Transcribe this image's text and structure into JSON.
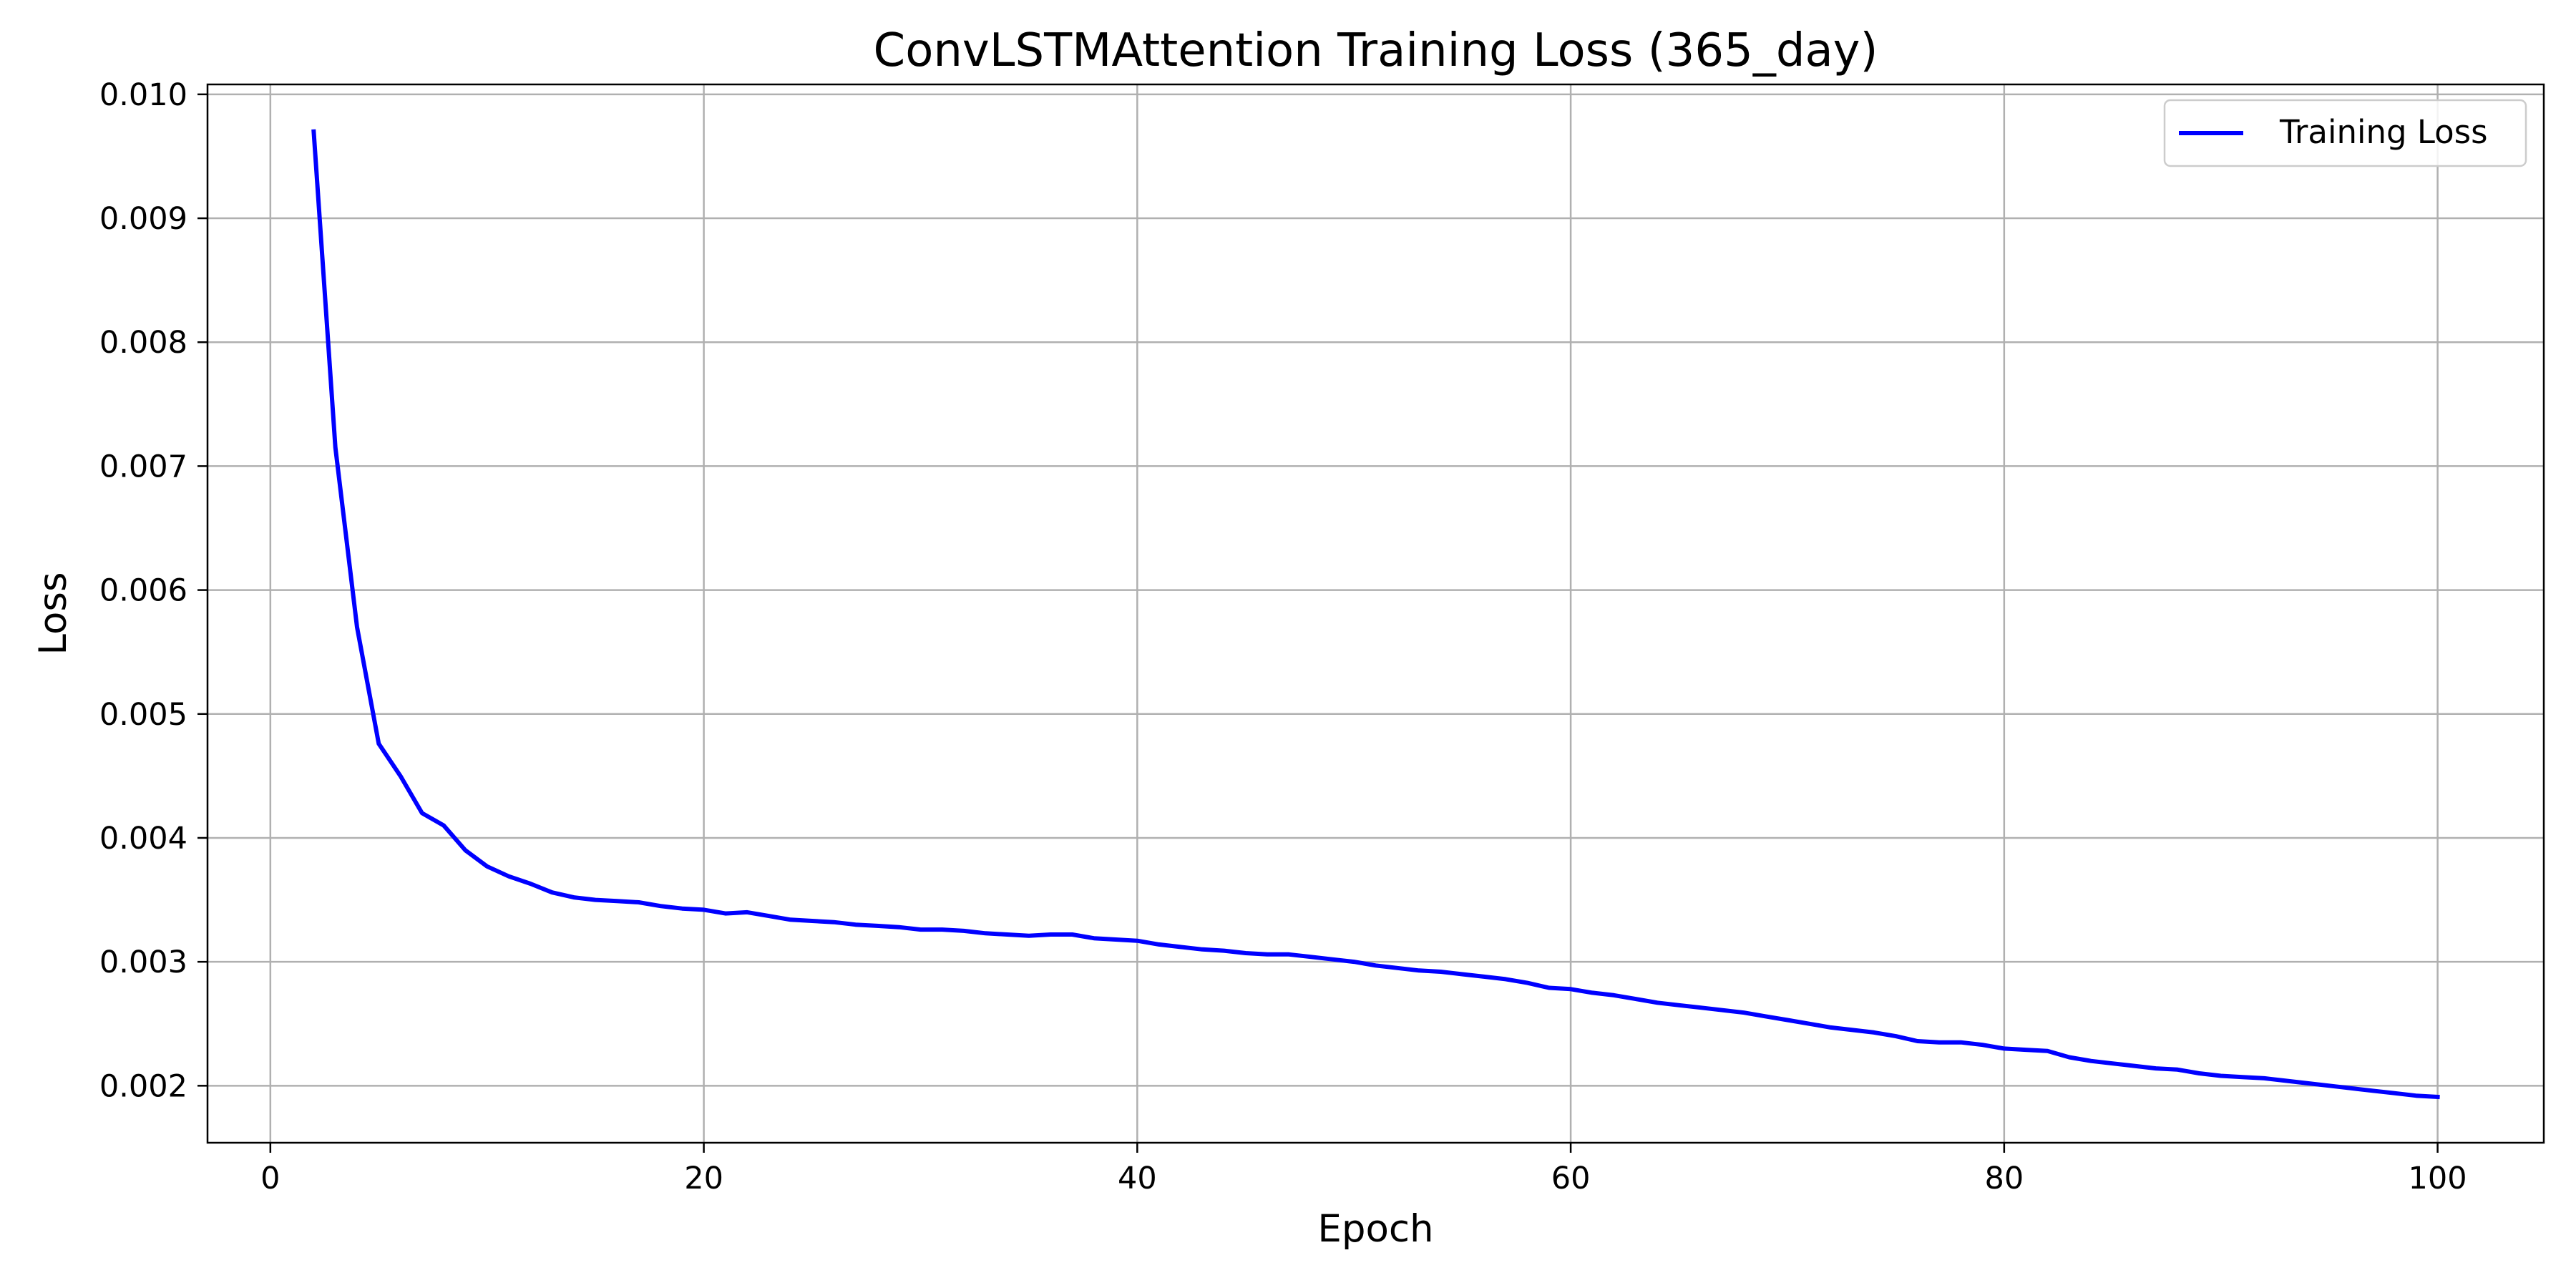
{
  "chart_data": {
    "type": "line",
    "title": "ConvLSTMAttention Training Loss (365_day)",
    "xlabel": "Epoch",
    "ylabel": "Loss",
    "xlim": [
      -2.9,
      104.9
    ],
    "ylim": [
      0.00154,
      0.01008
    ],
    "x_ticks": [
      0,
      20,
      40,
      60,
      80,
      100
    ],
    "x_tick_labels": [
      "0",
      "20",
      "40",
      "60",
      "80",
      "100"
    ],
    "y_ticks": [
      0.002,
      0.003,
      0.004,
      0.005,
      0.006,
      0.007,
      0.008,
      0.009,
      0.01
    ],
    "y_tick_labels": [
      "0.002",
      "0.003",
      "0.004",
      "0.005",
      "0.006",
      "0.007",
      "0.008",
      "0.009",
      "0.010"
    ],
    "grid": true,
    "legend_position": "top-right",
    "series": [
      {
        "name": "Training Loss",
        "color": "#0000ff",
        "x": [
          2,
          3,
          4,
          5,
          6,
          7,
          8,
          9,
          10,
          11,
          12,
          13,
          14,
          15,
          16,
          17,
          18,
          19,
          20,
          21,
          22,
          23,
          24,
          25,
          26,
          27,
          28,
          29,
          30,
          31,
          32,
          33,
          34,
          35,
          36,
          37,
          38,
          39,
          40,
          41,
          42,
          43,
          44,
          45,
          46,
          47,
          48,
          49,
          50,
          51,
          52,
          53,
          54,
          55,
          56,
          57,
          58,
          59,
          60,
          61,
          62,
          63,
          64,
          65,
          66,
          67,
          68,
          69,
          70,
          71,
          72,
          73,
          74,
          75,
          76,
          77,
          78,
          79,
          80,
          81,
          82,
          83,
          84,
          85,
          86,
          87,
          88,
          89,
          90,
          91,
          92,
          93,
          94,
          95,
          96,
          97,
          98,
          99,
          100
        ],
        "y": [
          0.0097,
          0.00715,
          0.0057,
          0.00476,
          0.0045,
          0.0042,
          0.0041,
          0.0039,
          0.00377,
          0.00369,
          0.00363,
          0.00356,
          0.00352,
          0.0035,
          0.00349,
          0.00348,
          0.00345,
          0.00343,
          0.00342,
          0.00339,
          0.0034,
          0.00337,
          0.00334,
          0.00333,
          0.00332,
          0.0033,
          0.00329,
          0.00328,
          0.00326,
          0.00326,
          0.00325,
          0.00323,
          0.00322,
          0.00321,
          0.00322,
          0.00322,
          0.00319,
          0.00318,
          0.00317,
          0.00314,
          0.00312,
          0.0031,
          0.00309,
          0.00307,
          0.00306,
          0.00306,
          0.00304,
          0.00302,
          0.003,
          0.00297,
          0.00295,
          0.00293,
          0.00292,
          0.0029,
          0.00288,
          0.00286,
          0.00283,
          0.00279,
          0.00278,
          0.00275,
          0.00273,
          0.0027,
          0.00267,
          0.00265,
          0.00263,
          0.00261,
          0.00259,
          0.00256,
          0.00253,
          0.0025,
          0.00247,
          0.00245,
          0.00243,
          0.0024,
          0.00236,
          0.00235,
          0.00235,
          0.00233,
          0.0023,
          0.00229,
          0.00228,
          0.00223,
          0.0022,
          0.00218,
          0.00216,
          0.00214,
          0.00213,
          0.0021,
          0.00208,
          0.00207,
          0.00206,
          0.00204,
          0.00202,
          0.002,
          0.00198,
          0.00196,
          0.00194,
          0.00192,
          0.00191
        ]
      }
    ]
  }
}
